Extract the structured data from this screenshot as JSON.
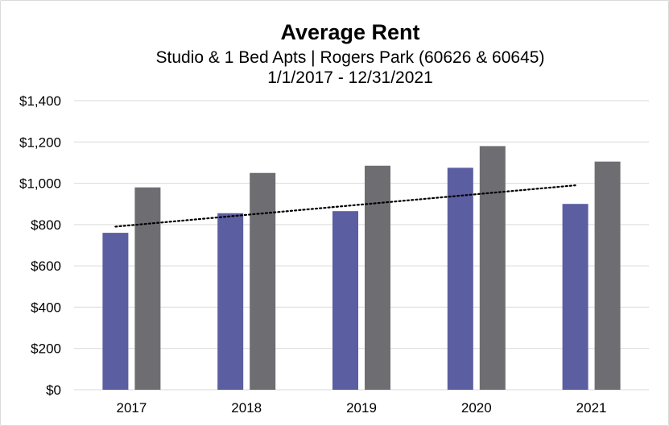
{
  "chart_data": {
    "type": "bar",
    "title": "Average Rent",
    "subtitle_lines": [
      "Studio & 1 Bed Apts | Rogers Park (60626 & 60645)",
      "1/1/2017 - 12/31/2021"
    ],
    "xlabel": "",
    "ylabel": "",
    "categories": [
      "2017",
      "2018",
      "2019",
      "2020",
      "2021"
    ],
    "series": [
      {
        "color": "#5b5ea0",
        "values": [
          760,
          855,
          865,
          1075,
          900
        ]
      },
      {
        "color": "#6e6e72",
        "values": [
          980,
          1050,
          1085,
          1180,
          1105
        ]
      }
    ],
    "trendline": {
      "series_index": 0,
      "style": "dotted",
      "color": "#000000",
      "values": [
        790,
        990
      ]
    },
    "ylim": [
      0,
      1400
    ],
    "yticks": [
      0,
      200,
      400,
      600,
      800,
      1000,
      1200,
      1400
    ],
    "ytick_labels": [
      "$0",
      "$200",
      "$400",
      "$600",
      "$800",
      "$1,000",
      "$1,200",
      "$1,400"
    ],
    "grid": true,
    "gridline_color": "#d9d9d9",
    "legend": "none"
  }
}
